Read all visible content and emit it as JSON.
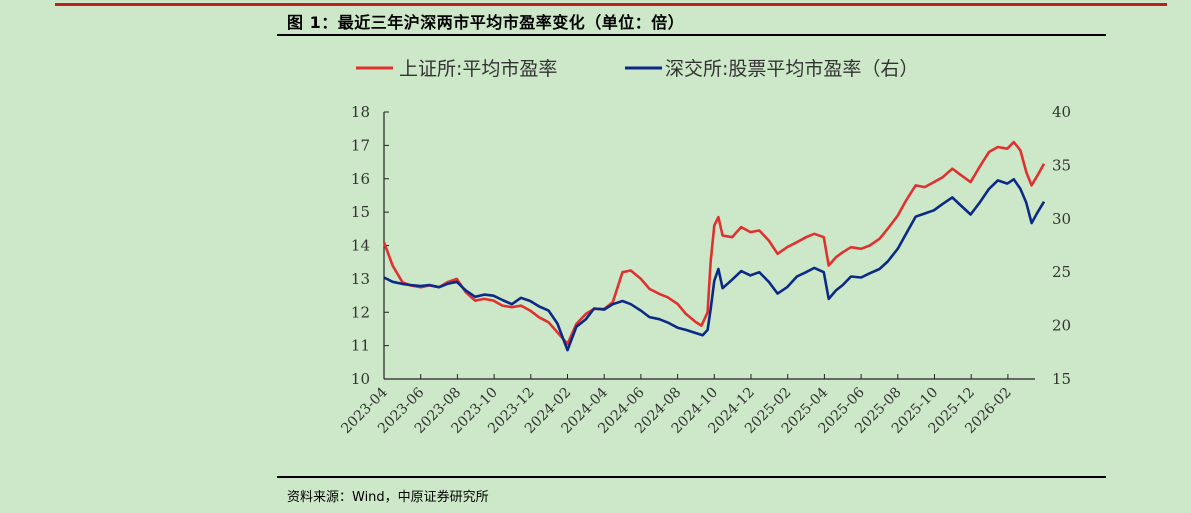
{
  "figure": {
    "caption": "图 1：最近三年沪深两市平均市盈率变化（单位：倍）",
    "source": "资料来源：Wind，中原证券研究所"
  },
  "colors": {
    "background": "#cde8c8",
    "red_series": "#e03131",
    "blue_series": "#0b2a86",
    "top_rule": "#c0201e"
  },
  "chart_data": {
    "type": "line",
    "title": "",
    "xlabel": "",
    "ylabel": "",
    "grid": false,
    "legend_position": "top",
    "x_ticks": [
      "2023-04",
      "2023-06",
      "2023-08",
      "2023-10",
      "2023-12",
      "2024-02",
      "2024-04",
      "2024-06",
      "2024-08",
      "2024-10",
      "2024-12",
      "2025-02",
      "2025-04",
      "2025-06",
      "2025-08",
      "2025-10",
      "2025-12",
      "2026-02"
    ],
    "y_left": {
      "min": 10,
      "max": 18,
      "ticks": [
        10,
        11,
        12,
        13,
        14,
        15,
        16,
        17,
        18
      ]
    },
    "y_right": {
      "min": 15,
      "max": 40,
      "ticks": [
        15,
        20,
        25,
        30,
        35,
        40
      ]
    },
    "series": [
      {
        "name": "上证所:平均市盈率",
        "axis": "left",
        "color": "#e03131",
        "points": [
          [
            "2023-04-01",
            14.1
          ],
          [
            "2023-04-15",
            13.4
          ],
          [
            "2023-05-01",
            12.9
          ],
          [
            "2023-05-15",
            12.8
          ],
          [
            "2023-06-01",
            12.75
          ],
          [
            "2023-06-15",
            12.8
          ],
          [
            "2023-07-01",
            12.75
          ],
          [
            "2023-07-15",
            12.9
          ],
          [
            "2023-07-31",
            13.0
          ],
          [
            "2023-08-15",
            12.6
          ],
          [
            "2023-08-31",
            12.35
          ],
          [
            "2023-09-15",
            12.4
          ],
          [
            "2023-09-30",
            12.35
          ],
          [
            "2023-10-15",
            12.2
          ],
          [
            "2023-10-31",
            12.15
          ],
          [
            "2023-11-15",
            12.2
          ],
          [
            "2023-11-30",
            12.05
          ],
          [
            "2023-12-15",
            11.85
          ],
          [
            "2023-12-31",
            11.7
          ],
          [
            "2024-01-15",
            11.4
          ],
          [
            "2024-02-01",
            11.05
          ],
          [
            "2024-02-15",
            11.65
          ],
          [
            "2024-03-01",
            11.95
          ],
          [
            "2024-03-15",
            12.1
          ],
          [
            "2024-04-01",
            12.1
          ],
          [
            "2024-04-15",
            12.3
          ],
          [
            "2024-05-01",
            13.2
          ],
          [
            "2024-05-15",
            13.25
          ],
          [
            "2024-06-01",
            13.0
          ],
          [
            "2024-06-15",
            12.7
          ],
          [
            "2024-07-01",
            12.55
          ],
          [
            "2024-07-15",
            12.45
          ],
          [
            "2024-08-01",
            12.25
          ],
          [
            "2024-08-15",
            11.95
          ],
          [
            "2024-09-01",
            11.7
          ],
          [
            "2024-09-10",
            11.6
          ],
          [
            "2024-09-20",
            12.0
          ],
          [
            "2024-09-25",
            13.5
          ],
          [
            "2024-10-01",
            14.6
          ],
          [
            "2024-10-08",
            14.85
          ],
          [
            "2024-10-15",
            14.3
          ],
          [
            "2024-10-31",
            14.25
          ],
          [
            "2024-11-15",
            14.55
          ],
          [
            "2024-11-30",
            14.4
          ],
          [
            "2024-12-15",
            14.45
          ],
          [
            "2024-12-31",
            14.15
          ],
          [
            "2025-01-15",
            13.75
          ],
          [
            "2025-01-31",
            13.95
          ],
          [
            "2025-02-15",
            14.1
          ],
          [
            "2025-03-01",
            14.25
          ],
          [
            "2025-03-15",
            14.35
          ],
          [
            "2025-03-31",
            14.25
          ],
          [
            "2025-04-08",
            13.4
          ],
          [
            "2025-04-20",
            13.65
          ],
          [
            "2025-05-01",
            13.8
          ],
          [
            "2025-05-15",
            13.95
          ],
          [
            "2025-06-01",
            13.9
          ],
          [
            "2025-06-15",
            14.0
          ],
          [
            "2025-07-01",
            14.2
          ],
          [
            "2025-07-15",
            14.5
          ],
          [
            "2025-08-01",
            14.9
          ],
          [
            "2025-08-15",
            15.35
          ],
          [
            "2025-08-31",
            15.8
          ],
          [
            "2025-09-15",
            15.75
          ],
          [
            "2025-09-30",
            15.9
          ],
          [
            "2025-10-15",
            16.05
          ],
          [
            "2025-10-31",
            16.3
          ],
          [
            "2025-11-15",
            16.1
          ],
          [
            "2025-11-30",
            15.9
          ],
          [
            "2025-12-15",
            16.35
          ],
          [
            "2025-12-31",
            16.8
          ],
          [
            "2026-01-15",
            16.95
          ],
          [
            "2026-01-31",
            16.9
          ],
          [
            "2026-02-10",
            17.1
          ],
          [
            "2026-02-20",
            16.85
          ],
          [
            "2026-03-01",
            16.2
          ],
          [
            "2026-03-10",
            15.8
          ],
          [
            "2026-03-20",
            16.1
          ],
          [
            "2026-03-31",
            16.45
          ]
        ]
      },
      {
        "name": "深交所:股票平均市盈率（右）",
        "axis": "right",
        "color": "#0b2a86",
        "points": [
          [
            "2023-04-01",
            24.5
          ],
          [
            "2023-04-15",
            24.1
          ],
          [
            "2023-05-01",
            23.9
          ],
          [
            "2023-05-15",
            23.8
          ],
          [
            "2023-06-01",
            23.7
          ],
          [
            "2023-06-15",
            23.8
          ],
          [
            "2023-07-01",
            23.6
          ],
          [
            "2023-07-15",
            23.9
          ],
          [
            "2023-07-31",
            24.1
          ],
          [
            "2023-08-15",
            23.3
          ],
          [
            "2023-08-31",
            22.7
          ],
          [
            "2023-09-15",
            22.9
          ],
          [
            "2023-09-30",
            22.8
          ],
          [
            "2023-10-15",
            22.4
          ],
          [
            "2023-10-31",
            22.0
          ],
          [
            "2023-11-15",
            22.6
          ],
          [
            "2023-11-30",
            22.3
          ],
          [
            "2023-12-15",
            21.8
          ],
          [
            "2023-12-31",
            21.4
          ],
          [
            "2024-01-15",
            20.2
          ],
          [
            "2024-02-01",
            17.7
          ],
          [
            "2024-02-15",
            19.9
          ],
          [
            "2024-03-01",
            20.6
          ],
          [
            "2024-03-15",
            21.6
          ],
          [
            "2024-04-01",
            21.5
          ],
          [
            "2024-04-15",
            22.0
          ],
          [
            "2024-05-01",
            22.3
          ],
          [
            "2024-05-15",
            22.0
          ],
          [
            "2024-06-01",
            21.4
          ],
          [
            "2024-06-15",
            20.8
          ],
          [
            "2024-07-01",
            20.6
          ],
          [
            "2024-07-15",
            20.3
          ],
          [
            "2024-08-01",
            19.8
          ],
          [
            "2024-08-15",
            19.6
          ],
          [
            "2024-09-01",
            19.3
          ],
          [
            "2024-09-12",
            19.1
          ],
          [
            "2024-09-20",
            19.6
          ],
          [
            "2024-09-25",
            21.5
          ],
          [
            "2024-10-01",
            24.2
          ],
          [
            "2024-10-08",
            25.3
          ],
          [
            "2024-10-15",
            23.5
          ],
          [
            "2024-10-31",
            24.3
          ],
          [
            "2024-11-15",
            25.1
          ],
          [
            "2024-11-30",
            24.7
          ],
          [
            "2024-12-15",
            25.0
          ],
          [
            "2024-12-31",
            24.1
          ],
          [
            "2025-01-15",
            23.0
          ],
          [
            "2025-01-31",
            23.6
          ],
          [
            "2025-02-15",
            24.6
          ],
          [
            "2025-03-01",
            25.0
          ],
          [
            "2025-03-15",
            25.4
          ],
          [
            "2025-03-31",
            25.0
          ],
          [
            "2025-04-08",
            22.5
          ],
          [
            "2025-04-20",
            23.3
          ],
          [
            "2025-05-01",
            23.8
          ],
          [
            "2025-05-15",
            24.6
          ],
          [
            "2025-06-01",
            24.5
          ],
          [
            "2025-06-15",
            24.9
          ],
          [
            "2025-07-01",
            25.3
          ],
          [
            "2025-07-15",
            26.0
          ],
          [
            "2025-08-01",
            27.2
          ],
          [
            "2025-08-15",
            28.6
          ],
          [
            "2025-08-31",
            30.2
          ],
          [
            "2025-09-15",
            30.5
          ],
          [
            "2025-09-30",
            30.8
          ],
          [
            "2025-10-15",
            31.4
          ],
          [
            "2025-10-31",
            32.0
          ],
          [
            "2025-11-15",
            31.2
          ],
          [
            "2025-11-30",
            30.4
          ],
          [
            "2025-12-15",
            31.5
          ],
          [
            "2025-12-31",
            32.8
          ],
          [
            "2026-01-15",
            33.6
          ],
          [
            "2026-01-31",
            33.3
          ],
          [
            "2026-02-10",
            33.7
          ],
          [
            "2026-02-20",
            32.8
          ],
          [
            "2026-03-01",
            31.5
          ],
          [
            "2026-03-10",
            29.6
          ],
          [
            "2026-03-20",
            30.6
          ],
          [
            "2026-03-31",
            31.6
          ]
        ]
      }
    ]
  }
}
